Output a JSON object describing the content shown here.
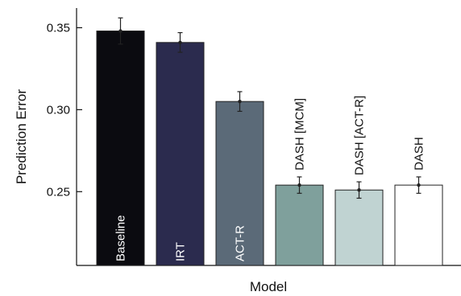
{
  "chart_data": {
    "type": "bar",
    "xlabel": "Model",
    "ylabel": "Prediction Error",
    "ylim": [
      0.205,
      0.362
    ],
    "yticks": [
      "0.25",
      "0.30",
      "0.35"
    ],
    "grid": false,
    "categories": [
      "Baseline",
      "IRT",
      "ACT-R",
      "DASH [MCM]",
      "DASH [ACT-R]",
      "DASH"
    ],
    "values": [
      0.348,
      0.341,
      0.305,
      0.254,
      0.251,
      0.254
    ],
    "errors": [
      0.008,
      0.006,
      0.006,
      0.005,
      0.005,
      0.005
    ],
    "colors": [
      "#0b0b10",
      "#2b2b4e",
      "#5b6a78",
      "#7fa09c",
      "#c0d3d2",
      "#ffffff"
    ],
    "label_colors": [
      "#ffffff",
      "#ffffff",
      "#ffffff",
      "#111111",
      "#111111",
      "#111111"
    ],
    "label_position": [
      "inside",
      "inside",
      "inside",
      "above",
      "above",
      "above"
    ]
  }
}
